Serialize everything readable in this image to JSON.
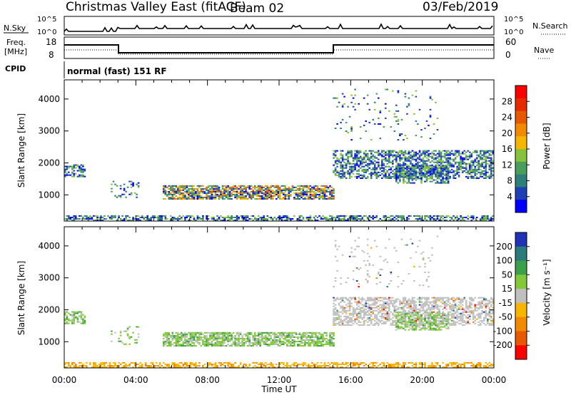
{
  "header": {
    "station": "Christmas Valley East (fitACF)",
    "beam": "Beam 02",
    "date": "03/Feb/2019"
  },
  "strip_labels": {
    "nsky": "N.Sky",
    "nsearch": "N.Search",
    "freq_top": "Freq.",
    "freq_unit": "[MHz]",
    "nave": "Nave",
    "cpid": "CPID",
    "cpid_value": "normal (fast) 151 RF",
    "noise_tick_hi": "10^5",
    "noise_tick_lo": "10^0",
    "freq_tick_hi": "18",
    "freq_tick_lo": "8",
    "nave_tick_hi": "60",
    "nave_tick_lo": "0"
  },
  "chart_data": [
    {
      "type": "heatmap",
      "title": "",
      "ylabel": "Slant Range [km]",
      "xlabel": "Time UT",
      "ylim": [
        180,
        4600
      ],
      "x_ticks": [
        "00:00",
        "04:00",
        "08:00",
        "12:00",
        "16:00",
        "20:00",
        "00:00"
      ],
      "y_ticks": [
        1000,
        2000,
        3000,
        4000
      ],
      "colorbar": {
        "label": "Power [dB]",
        "ticks": [
          4,
          8,
          12,
          16,
          20,
          24,
          28
        ],
        "colors": [
          "#0000ff",
          "#1f3fb4",
          "#2e7f7a",
          "#4a9d5b",
          "#86c23d",
          "#f7b500",
          "#f08a00",
          "#e85800",
          "#e62a00",
          "#ff0000"
        ]
      }
    },
    {
      "type": "heatmap",
      "title": "",
      "ylabel": "Slant Range [km]",
      "xlabel": "Time UT",
      "ylim": [
        180,
        4600
      ],
      "x_ticks": [
        "00:00",
        "04:00",
        "08:00",
        "12:00",
        "16:00",
        "20:00",
        "00:00"
      ],
      "y_ticks": [
        1000,
        2000,
        3000,
        4000
      ],
      "colorbar": {
        "label": "Velocity [m s⁻¹]",
        "ticks": [
          200,
          100,
          50,
          15,
          -15,
          -50,
          -100,
          -200
        ],
        "colors": [
          "#1f33b4",
          "#2c7b7b",
          "#3aa04a",
          "#83c838",
          "#bfbfbf",
          "#f7b500",
          "#f08a00",
          "#e85800",
          "#ff0000"
        ]
      }
    }
  ]
}
